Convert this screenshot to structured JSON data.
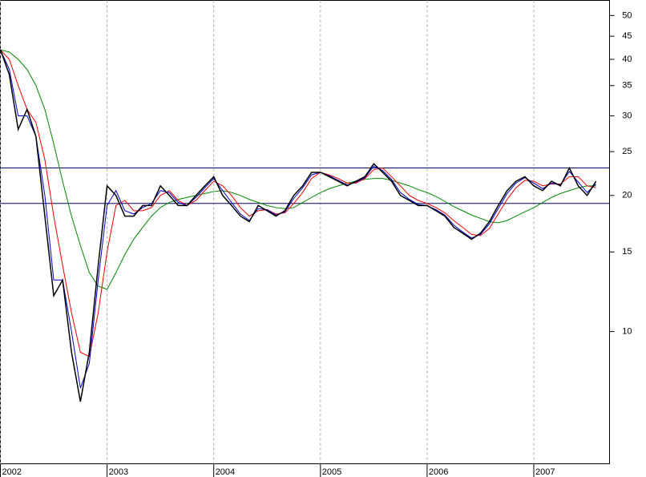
{
  "chart_data": {
    "type": "line",
    "x": [
      2002,
      2002.0833,
      2002.1667,
      2002.25,
      2002.3333,
      2002.4167,
      2002.5,
      2002.5833,
      2002.6667,
      2002.75,
      2002.8333,
      2002.9167,
      2003,
      2003.0833,
      2003.1667,
      2003.25,
      2003.3333,
      2003.4167,
      2003.5,
      2003.5833,
      2003.6667,
      2003.75,
      2003.8333,
      2003.9167,
      2004,
      2004.0833,
      2004.1667,
      2004.25,
      2004.3333,
      2004.4167,
      2004.5,
      2004.5833,
      2004.6667,
      2004.75,
      2004.8333,
      2004.9167,
      2005,
      2005.0833,
      2005.1667,
      2005.25,
      2005.3333,
      2005.4167,
      2005.5,
      2005.5833,
      2005.6667,
      2005.75,
      2005.8333,
      2005.9167,
      2006,
      2006.0833,
      2006.1667,
      2006.25,
      2006.3333,
      2006.4167,
      2006.5,
      2006.5833,
      2006.6667,
      2006.75,
      2006.8333,
      2006.9167,
      2007,
      2007.0833,
      2007.1667,
      2007.25,
      2007.3333,
      2007.4167,
      2007.5,
      2007.5833
    ],
    "series": [
      {
        "color": "#000000",
        "values": [
          42,
          37,
          28,
          31,
          27,
          18,
          12,
          13,
          9,
          7,
          9,
          14,
          21,
          20,
          18,
          18,
          19,
          19,
          21,
          20,
          19,
          19,
          20,
          21,
          22,
          20,
          19,
          18,
          17.5,
          19,
          18.5,
          18,
          18.5,
          20,
          21,
          22.5,
          22.5,
          22,
          21.5,
          21,
          21.5,
          22,
          23.5,
          22.5,
          21.5,
          20,
          19.5,
          19,
          19,
          18.5,
          18,
          17,
          16.5,
          16,
          16.5,
          17.5,
          19,
          20.5,
          21.5,
          22,
          21,
          20.5,
          21.5,
          21,
          23,
          21,
          20,
          21.5
        ]
      },
      {
        "color": "#0000cc",
        "values": [
          42,
          38,
          30,
          30,
          27,
          20,
          13,
          13,
          10,
          7.5,
          8.5,
          13,
          19,
          20.5,
          18.5,
          18.2,
          18.8,
          19.2,
          20.5,
          20.3,
          19.3,
          19,
          19.8,
          20.8,
          21.8,
          20.5,
          19.3,
          18.2,
          17.6,
          18.7,
          18.6,
          18.1,
          18.4,
          19.7,
          20.8,
          22.2,
          22.5,
          22.1,
          21.6,
          21.1,
          21.4,
          21.9,
          23.2,
          22.7,
          21.7,
          20.3,
          19.6,
          19.1,
          19,
          18.6,
          18.1,
          17.2,
          16.6,
          16.1,
          16.4,
          17.3,
          18.7,
          20.2,
          21.3,
          21.9,
          21.3,
          20.7,
          21.3,
          21.1,
          22.6,
          21.4,
          20.3,
          21.2
        ]
      },
      {
        "color": "#ee0000",
        "values": [
          42,
          40,
          35,
          31,
          29,
          24,
          18,
          14,
          11,
          9,
          8.8,
          11,
          15,
          19,
          19.5,
          18.5,
          18.5,
          18.8,
          20,
          20.5,
          19.5,
          19,
          19.5,
          20.5,
          21.5,
          21,
          20,
          18.8,
          18,
          18.5,
          18.6,
          18.2,
          18.3,
          19.2,
          20.3,
          21.8,
          22.5,
          22.2,
          21.8,
          21.3,
          21.3,
          21.8,
          22.8,
          23,
          22,
          21,
          20,
          19.5,
          19.2,
          18.8,
          18.3,
          17.6,
          17,
          16.4,
          16.3,
          16.9,
          18.2,
          19.6,
          20.8,
          21.6,
          21.5,
          21,
          21.2,
          21.2,
          22,
          22,
          21,
          20.8
        ]
      },
      {
        "color": "#008800",
        "values": [
          42,
          41.5,
          40,
          38,
          35,
          31,
          26,
          21.5,
          18,
          15.5,
          13.5,
          12.6,
          12.4,
          13.5,
          14.8,
          16,
          17,
          18,
          18.8,
          19.3,
          19.6,
          19.8,
          20,
          20.2,
          20.4,
          20.5,
          20.3,
          20,
          19.6,
          19.3,
          19,
          18.8,
          18.7,
          18.8,
          19.3,
          19.8,
          20.3,
          20.7,
          21,
          21.3,
          21.5,
          21.7,
          21.8,
          21.8,
          21.6,
          21.3,
          21,
          20.6,
          20.3,
          19.9,
          19.4,
          18.9,
          18.5,
          18.1,
          17.8,
          17.5,
          17.4,
          17.6,
          18,
          18.4,
          18.8,
          19.3,
          19.8,
          20.2,
          20.5,
          20.8,
          21,
          21
        ]
      }
    ],
    "hlines": [
      23.0,
      19.2
    ],
    "hline_color": "#000066",
    "log_y": true,
    "xlim": [
      2002,
      2007.71
    ],
    "xticks": [
      2002,
      2003,
      2004,
      2005,
      2006,
      2007
    ],
    "ylim": [
      5.1,
      54
    ],
    "yticks": [
      10,
      15,
      20,
      25,
      30,
      35,
      40,
      45,
      50
    ],
    "grid": true
  }
}
